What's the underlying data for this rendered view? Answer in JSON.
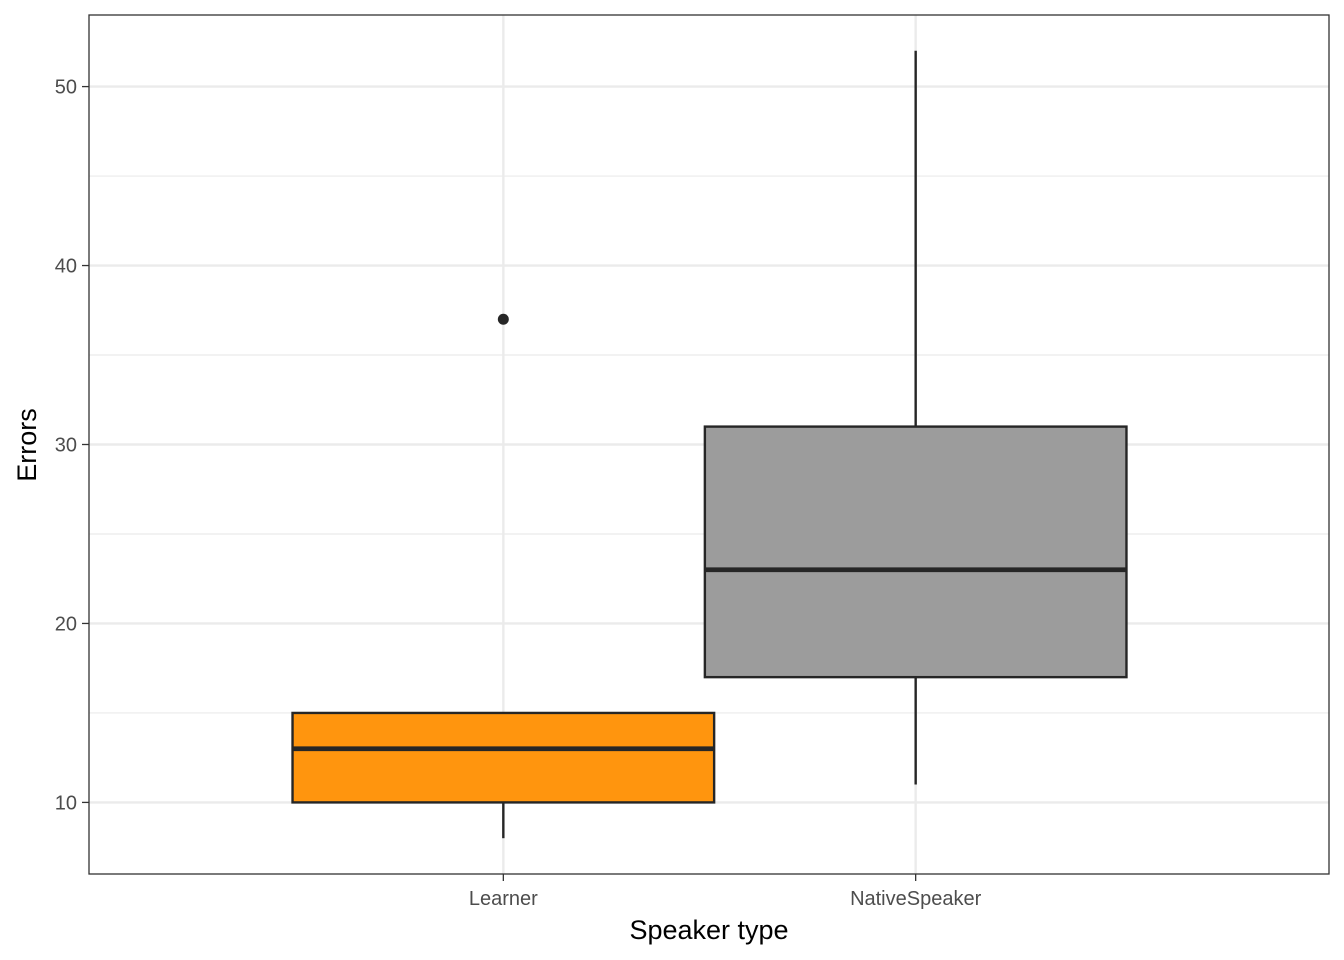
{
  "chart_data": {
    "type": "box",
    "title": "",
    "xlabel": "Speaker type",
    "ylabel": "Errors",
    "categories": [
      "Learner",
      "NativeSpeaker"
    ],
    "ylim": [
      6,
      54
    ],
    "yticks": [
      10,
      20,
      30,
      40,
      50
    ],
    "y_minor_ticks": [
      15,
      25,
      35,
      45
    ],
    "grid": true,
    "legend": "none",
    "boxes": [
      {
        "category": "Learner",
        "whisker_low": 8,
        "q1": 10,
        "median": 13,
        "q3": 15,
        "whisker_high": 15,
        "outliers": [
          37
        ],
        "fill": "#FF950E"
      },
      {
        "category": "NativeSpeaker",
        "whisker_low": 11,
        "q1": 17,
        "median": 23,
        "q3": 31,
        "whisker_high": 52,
        "outliers": [],
        "fill": "#9C9C9C"
      }
    ],
    "colors": {
      "gridline": "#EBEBEB",
      "box_outline": "#262626",
      "panel_border": "#333333",
      "tick_label": "#4D4D4D",
      "axis_title": "#000000"
    }
  }
}
